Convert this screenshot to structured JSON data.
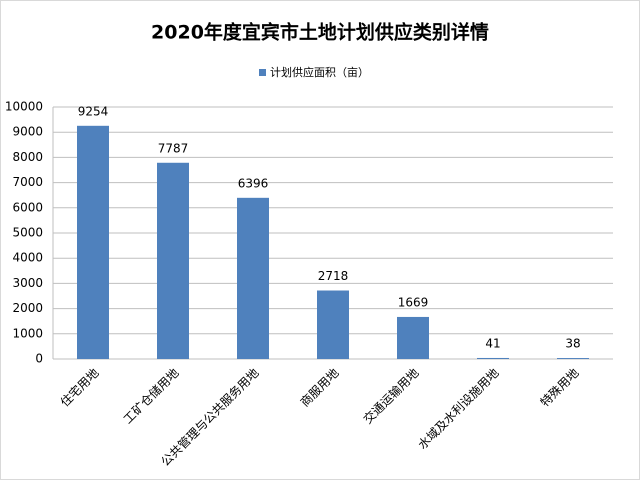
{
  "chart_data": {
    "type": "bar",
    "title": "2020年度宜宾市土地计划供应类别详情",
    "categories": [
      "住宅用地",
      "工矿仓储用地",
      "公共管理与公共服务用地",
      "商服用地",
      "交通运输用地",
      "水域及水利设施用地",
      "特殊用地"
    ],
    "series": [
      {
        "name": "计划供应面积（亩）",
        "color": "#4f81bd",
        "values": [
          9254,
          7787,
          6396,
          2718,
          1669,
          41,
          38
        ]
      }
    ],
    "ylim": [
      0,
      10000
    ],
    "yticks": [
      0,
      1000,
      2000,
      3000,
      4000,
      5000,
      6000,
      7000,
      8000,
      9000,
      10000
    ],
    "grid": true,
    "legend": "top"
  }
}
